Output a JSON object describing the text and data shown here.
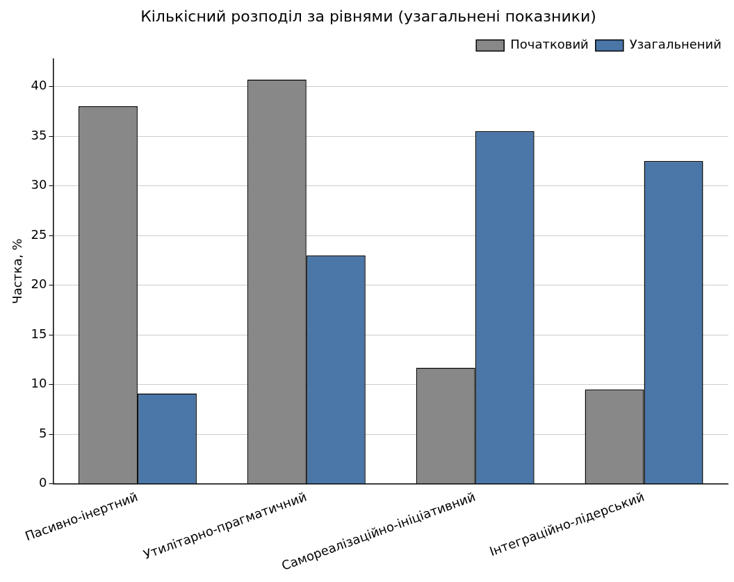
{
  "chart_data": {
    "type": "bar",
    "title": "Кількісний розподіл за рівнями (узагальнені показники)",
    "ylabel": "Частка, %",
    "categories": [
      "Пасивно-інертний",
      "Утилітарно-прагматичний",
      "Самореалізаційно-ініціативний",
      "Інтеграційно-лідерський"
    ],
    "series": [
      {
        "name": "Початковий",
        "color": "#888888",
        "values": [
          38.0,
          40.7,
          11.7,
          9.5
        ]
      },
      {
        "name": "Узагальнений",
        "color": "#4a76a8",
        "values": [
          9.1,
          23.0,
          35.5,
          32.5
        ]
      }
    ],
    "ylim": [
      0,
      42.8
    ],
    "yticks": [
      0,
      5,
      10,
      15,
      20,
      25,
      30,
      35,
      40
    ],
    "grid": "y",
    "legend": "top right"
  }
}
